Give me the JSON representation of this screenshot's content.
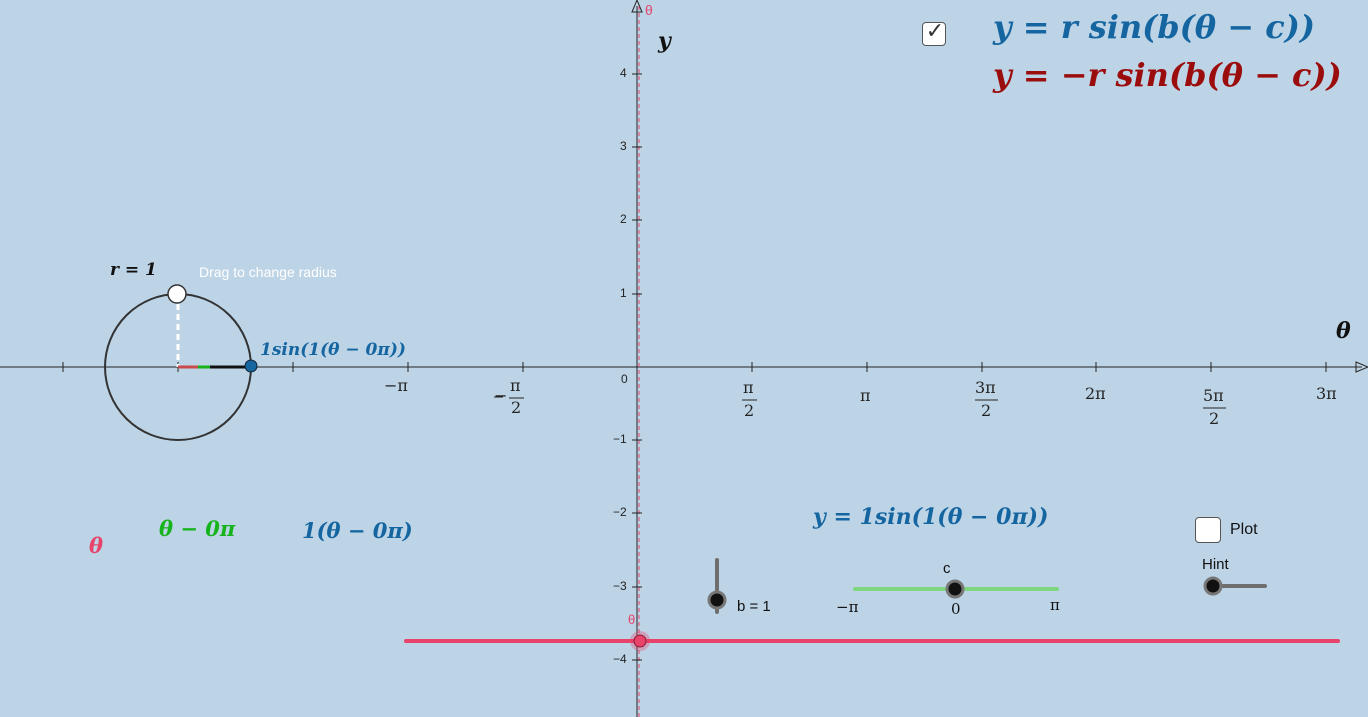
{
  "colors": {
    "background": "#bdd4e7",
    "blue": "#1565a0",
    "red": "#9b0c0c",
    "green": "#17b31b",
    "pink": "#e8436b",
    "axis": "#222222"
  },
  "equations": {
    "checkbox_checked": true,
    "positive": "y = r sin(b(θ − c))",
    "negative": "y = −r sin(b(θ − c))"
  },
  "axes": {
    "y_label": "y",
    "x_label": "θ",
    "theta_marker": "θ",
    "origin_label": "0",
    "y_ticks": [
      "4",
      "3",
      "2",
      "1",
      "−1",
      "−2",
      "−3",
      "−4"
    ],
    "x_ticks": {
      "neg_pi": "−π",
      "neg_half_pi_num": "π",
      "neg_half_pi_den": "2",
      "half_pi_num": "π",
      "half_pi_den": "2",
      "pi": "π",
      "three_half_pi_num": "3π",
      "three_half_pi_den": "2",
      "two_pi": "2π",
      "five_half_pi_num": "5π",
      "five_half_pi_den": "2",
      "three_pi": "3π"
    }
  },
  "circle": {
    "radius_label": "r = 1",
    "drag_hint": "Drag to change radius",
    "point_label": "1sin(1(θ − 0π))"
  },
  "expressions": {
    "theta": "θ",
    "shifted": "θ − 0π",
    "scaled": "1(θ − 0π)",
    "full": "y = 1sin(1(θ − 0π))"
  },
  "sliders": {
    "b_label": "b = 1",
    "c_label": "c",
    "c_min": "−π",
    "c_zero": "0",
    "c_max": "π",
    "hint_label": "Hint",
    "theta_label": "θ"
  },
  "plot": {
    "label": "Plot",
    "checked": false
  }
}
